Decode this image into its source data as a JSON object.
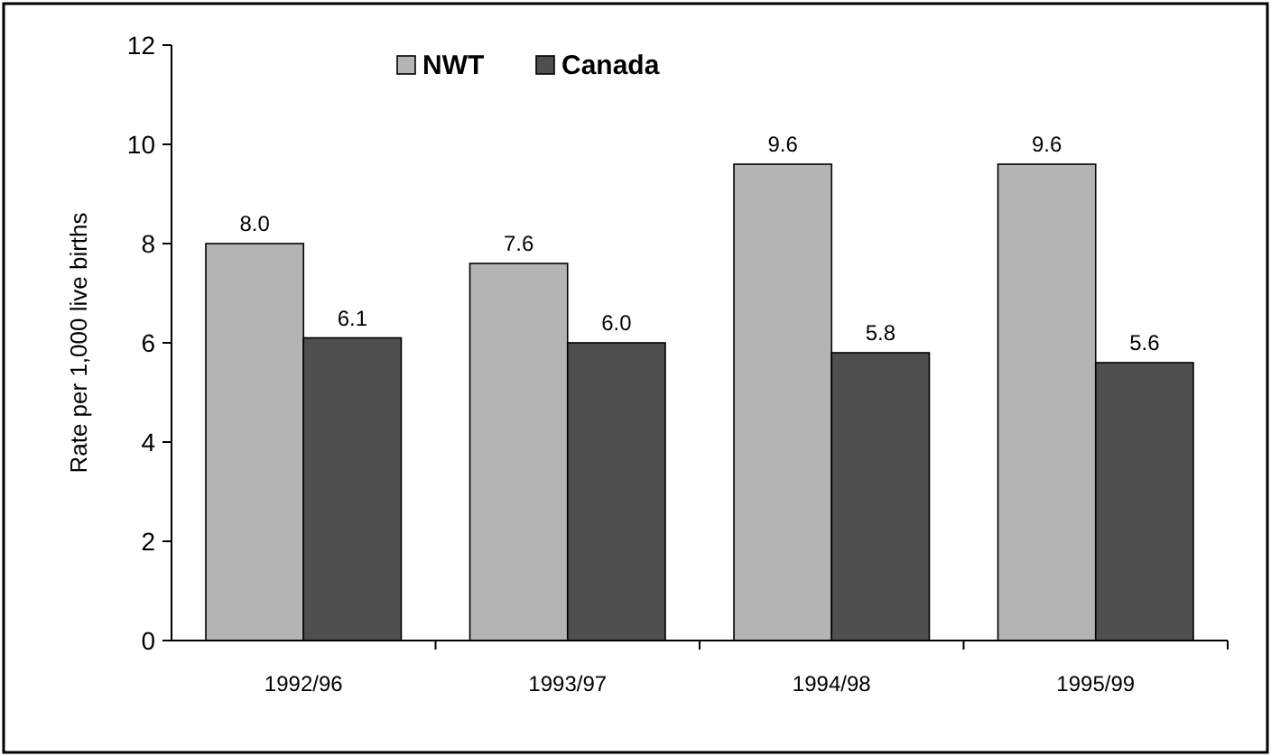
{
  "chart_data": {
    "type": "bar",
    "ylabel": "Rate per 1,000 live births",
    "categories": [
      "1992/96",
      "1993/97",
      "1994/98",
      "1995/99"
    ],
    "series": [
      {
        "name": "NWT",
        "color": "#b4b4b4",
        "values": [
          8.0,
          7.6,
          9.6,
          9.6
        ],
        "value_labels": [
          "8.0",
          "7.6",
          "9.6",
          "9.6"
        ]
      },
      {
        "name": "Canada",
        "color": "#4f4f4f",
        "values": [
          6.1,
          6.0,
          5.8,
          5.6
        ],
        "value_labels": [
          "6.1",
          "6.0",
          "5.8",
          "5.6"
        ]
      }
    ],
    "ylim": [
      0,
      12
    ],
    "yticks": [
      0,
      2,
      4,
      6,
      8,
      10,
      12
    ],
    "legend": "top left",
    "grid": false
  }
}
